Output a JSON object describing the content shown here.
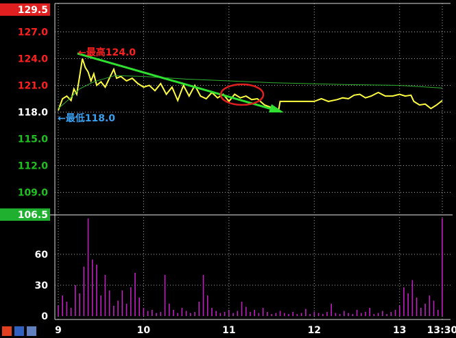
{
  "chart_data": [
    {
      "type": "line",
      "ylim": [
        106.5,
        129.5
      ],
      "yticks": [
        129.5,
        {
          "value": 127,
          "label": "127.0"
        },
        {
          "value": 124,
          "label": "124.0"
        },
        {
          "value": 121,
          "label": "121.0"
        },
        {
          "value": 118,
          "label": "118.0"
        },
        {
          "value": 115,
          "label": "115.0"
        },
        {
          "value": 112,
          "label": "112.0"
        },
        {
          "value": 109,
          "label": "109.0"
        },
        106.5
      ],
      "ytick_colors": [
        "#ffffff",
        "#ff2020",
        "#ff2020",
        "#ff2020",
        "#ffffff",
        "#20c020",
        "#20c020",
        "#20c020",
        "#ffffff"
      ],
      "xlim": [
        -2.4,
        275.8
      ],
      "xticks": [
        {
          "value": 0,
          "label": "9"
        },
        {
          "value": 60,
          "label": "10"
        },
        {
          "value": 120,
          "label": "11"
        },
        {
          "value": 180,
          "label": "12"
        },
        {
          "value": 240,
          "label": "13"
        },
        {
          "value": 270,
          "label": "13:30"
        }
      ],
      "grid": true,
      "annotations": [
        "←最高124.0",
        "←最低118.0"
      ],
      "series": [
        {
          "color": "#ffff40",
          "x": [
            0,
            3,
            6,
            9,
            11,
            13,
            15,
            17,
            19,
            21,
            23,
            25,
            27,
            30,
            33,
            36,
            39,
            41,
            44,
            48,
            52,
            56,
            60,
            64,
            68,
            72,
            76,
            80,
            84,
            88,
            92,
            96,
            100,
            104,
            108,
            112,
            116,
            120,
            124,
            128,
            132,
            136,
            140,
            145,
            150,
            155,
            156,
            160,
            170,
            180,
            185,
            190,
            196,
            200,
            204,
            208,
            212,
            216,
            220,
            225,
            230,
            235,
            240,
            244,
            248,
            250,
            254,
            258,
            262,
            266,
            270
          ],
          "values": [
            118.2,
            119.5,
            119.8,
            119.3,
            120.6,
            120.0,
            122.0,
            124.0,
            123.0,
            122.5,
            121.5,
            122.3,
            121.0,
            121.4,
            120.8,
            121.8,
            122.8,
            121.8,
            122.0,
            121.5,
            121.8,
            121.2,
            120.8,
            121.0,
            120.4,
            121.2,
            120.0,
            120.8,
            119.3,
            121.0,
            119.8,
            121.0,
            119.8,
            119.5,
            120.2,
            119.6,
            120.0,
            119.2,
            120.0,
            119.6,
            119.8,
            119.4,
            119.5,
            118.8,
            118.5,
            118.3,
            119.2,
            119.2,
            119.2,
            119.2,
            119.5,
            119.2,
            119.4,
            119.6,
            119.5,
            119.9,
            120.0,
            119.6,
            119.8,
            120.2,
            119.8,
            119.8,
            120.0,
            119.8,
            119.9,
            119.2,
            118.8,
            118.9,
            118.4,
            118.8,
            119.3
          ]
        },
        {
          "color": "#30b030",
          "x": [
            0,
            8,
            15,
            25,
            40,
            60,
            90,
            120,
            150,
            200,
            240,
            270
          ],
          "values": [
            118.4,
            119.5,
            120.6,
            121.4,
            122.1,
            122.0,
            121.7,
            121.5,
            121.3,
            121.1,
            121.0,
            120.7
          ]
        }
      ]
    },
    {
      "type": "bar",
      "color": "#c020c0",
      "ylim": [
        0,
        98
      ],
      "yticks": [
        0,
        30,
        60
      ],
      "x": [
        0,
        3,
        6,
        9,
        12,
        15,
        18,
        21,
        24,
        27,
        30,
        33,
        36,
        39,
        42,
        45,
        48,
        51,
        54,
        57,
        60,
        63,
        66,
        69,
        72,
        75,
        78,
        81,
        84,
        87,
        90,
        93,
        96,
        99,
        102,
        105,
        108,
        111,
        114,
        117,
        120,
        123,
        126,
        129,
        132,
        135,
        138,
        141,
        144,
        147,
        150,
        153,
        156,
        159,
        162,
        165,
        168,
        171,
        174,
        177,
        180,
        183,
        186,
        189,
        192,
        195,
        198,
        201,
        204,
        207,
        210,
        213,
        216,
        219,
        222,
        225,
        228,
        231,
        234,
        237,
        240,
        243,
        246,
        249,
        252,
        255,
        258,
        261,
        264,
        267,
        270
      ],
      "values": [
        10,
        20,
        14,
        8,
        30,
        22,
        48,
        95,
        55,
        50,
        20,
        40,
        25,
        10,
        15,
        25,
        12,
        28,
        42,
        18,
        8,
        5,
        6,
        3,
        4,
        40,
        12,
        6,
        3,
        8,
        5,
        3,
        4,
        14,
        40,
        20,
        8,
        5,
        3,
        4,
        6,
        3,
        5,
        14,
        9,
        4,
        6,
        3,
        8,
        4,
        2,
        3,
        5,
        3,
        2,
        4,
        2,
        3,
        7,
        2,
        4,
        3,
        2,
        4,
        12,
        3,
        2,
        5,
        3,
        2,
        6,
        3,
        4,
        8,
        2,
        3,
        5,
        2,
        4,
        6,
        10,
        28,
        22,
        35,
        18,
        8,
        12,
        20,
        15,
        6,
        95
      ]
    }
  ]
}
